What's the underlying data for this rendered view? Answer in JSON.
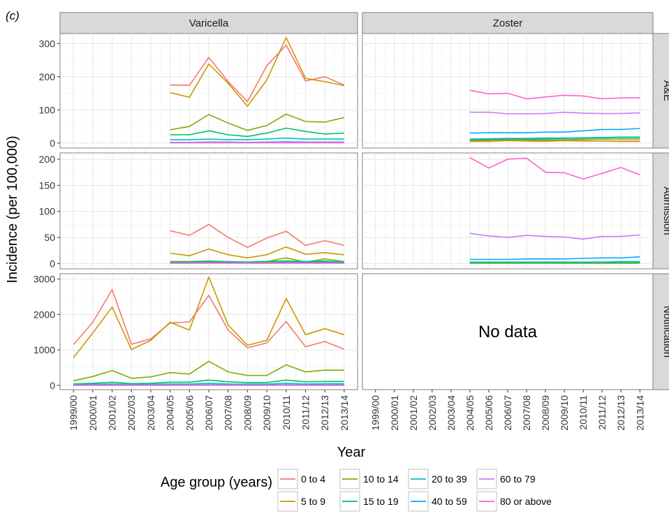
{
  "chart_data": {
    "type": "line",
    "panel_tag": "(c)",
    "columns": [
      "Varicella",
      "Zoster"
    ],
    "rows": [
      "A&E",
      "Admission",
      "Notification"
    ],
    "xlabel": "Year",
    "ylabel": "Incidence (per 100,000)",
    "categories": [
      "1999/00",
      "2000/01",
      "2001/02",
      "2002/03",
      "2003/04",
      "2004/05",
      "2005/06",
      "2006/07",
      "2007/08",
      "2008/09",
      "2009/10",
      "2010/11",
      "2011/12",
      "2012/13",
      "2013/14"
    ],
    "row_axes": [
      {
        "ylim": [
          -15,
          330
        ],
        "ticks": [
          0,
          100,
          200,
          300
        ]
      },
      {
        "ylim": [
          -10,
          212
        ],
        "ticks": [
          0,
          50,
          100,
          150,
          200
        ]
      },
      {
        "ylim": [
          -120,
          3150
        ],
        "ticks": [
          0,
          1000,
          2000,
          3000
        ]
      }
    ],
    "no_data_text": "No data",
    "legend": {
      "title": "Age group (years)",
      "placement": "bottom",
      "entries": [
        "0 to 4",
        "5 to 9",
        "10 to 14",
        "15 to 19",
        "20 to 39",
        "40 to 59",
        "60 to 79",
        "80 or above"
      ],
      "colors": [
        "#F8766D",
        "#CD9600",
        "#7CAE00",
        "#00BE67",
        "#00BFC4",
        "#00A9FF",
        "#C77CFF",
        "#FF61CC"
      ]
    },
    "panels": [
      {
        "row": 0,
        "col": 0,
        "series": [
          {
            "name": "0 to 4",
            "values": [
              null,
              null,
              null,
              null,
              null,
              175,
              174,
              258,
              185,
              125,
              233,
              295,
              187,
              200,
              175
            ]
          },
          {
            "name": "5 to 9",
            "values": [
              null,
              null,
              null,
              null,
              null,
              152,
              138,
              238,
              180,
              111,
              190,
              318,
              195,
              185,
              173
            ]
          },
          {
            "name": "10 to 14",
            "values": [
              null,
              null,
              null,
              null,
              null,
              40,
              50,
              86,
              60,
              38,
              53,
              87,
              65,
              63,
              77
            ]
          },
          {
            "name": "15 to 19",
            "values": [
              null,
              null,
              null,
              null,
              null,
              25,
              25,
              37,
              25,
              20,
              30,
              45,
              35,
              27,
              30
            ]
          },
          {
            "name": "20 to 39",
            "values": [
              null,
              null,
              null,
              null,
              null,
              10,
              10,
              12,
              10,
              10,
              12,
              15,
              12,
              12,
              12
            ]
          },
          {
            "name": "40 to 59",
            "values": [
              null,
              null,
              null,
              null,
              null,
              2,
              2,
              3,
              3,
              2,
              3,
              4,
              3,
              3,
              3
            ]
          },
          {
            "name": "60 to 79",
            "values": [
              null,
              null,
              null,
              null,
              null,
              1,
              1,
              2,
              2,
              1,
              2,
              2,
              2,
              2,
              2
            ]
          },
          {
            "name": "80 or above",
            "values": [
              null,
              null,
              null,
              null,
              null,
              1,
              1,
              1,
              1,
              1,
              1,
              1,
              1,
              1,
              1
            ]
          }
        ]
      },
      {
        "row": 0,
        "col": 1,
        "series": [
          {
            "name": "0 to 4",
            "values": [
              null,
              null,
              null,
              null,
              null,
              5,
              5,
              7,
              6,
              5,
              7,
              8,
              6,
              6,
              6
            ]
          },
          {
            "name": "5 to 9",
            "values": [
              null,
              null,
              null,
              null,
              null,
              5,
              6,
              8,
              7,
              6,
              7,
              6,
              6,
              5,
              5
            ]
          },
          {
            "name": "10 to 14",
            "values": [
              null,
              null,
              null,
              null,
              null,
              8,
              9,
              10,
              10,
              9,
              10,
              12,
              12,
              12,
              12
            ]
          },
          {
            "name": "15 to 19",
            "values": [
              null,
              null,
              null,
              null,
              null,
              10,
              12,
              13,
              13,
              13,
              14,
              16,
              16,
              17,
              17
            ]
          },
          {
            "name": "20 to 39",
            "values": [
              null,
              null,
              null,
              null,
              null,
              12,
              13,
              14,
              14,
              15,
              15,
              16,
              17,
              18,
              18
            ]
          },
          {
            "name": "40 to 59",
            "values": [
              null,
              null,
              null,
              null,
              null,
              30,
              31,
              31,
              31,
              33,
              33,
              37,
              41,
              41,
              44
            ]
          },
          {
            "name": "60 to 79",
            "values": [
              null,
              null,
              null,
              null,
              null,
              93,
              93,
              88,
              88,
              89,
              93,
              90,
              89,
              89,
              91
            ]
          },
          {
            "name": "80 or above",
            "values": [
              null,
              null,
              null,
              null,
              null,
              159,
              148,
              150,
              133,
              139,
              144,
              142,
              133,
              136,
              136
            ]
          }
        ]
      },
      {
        "row": 1,
        "col": 0,
        "series": [
          {
            "name": "0 to 4",
            "values": [
              null,
              null,
              null,
              null,
              null,
              63,
              54,
              75,
              50,
              31,
              49,
              62,
              35,
              44,
              35
            ]
          },
          {
            "name": "5 to 9",
            "values": [
              null,
              null,
              null,
              null,
              null,
              20,
              15,
              28,
              17,
              11,
              17,
              32,
              18,
              21,
              17
            ]
          },
          {
            "name": "10 to 14",
            "values": [
              null,
              null,
              null,
              null,
              null,
              4,
              4,
              5,
              4,
              3,
              4,
              11,
              3,
              9,
              4
            ]
          },
          {
            "name": "15 to 19",
            "values": [
              null,
              null,
              null,
              null,
              null,
              3,
              3,
              4,
              3,
              3,
              4,
              5,
              4,
              5,
              3
            ]
          },
          {
            "name": "20 to 39",
            "values": [
              null,
              null,
              null,
              null,
              null,
              2,
              2,
              3,
              3,
              2,
              2,
              3,
              3,
              3,
              3
            ]
          },
          {
            "name": "40 to 59",
            "values": [
              null,
              null,
              null,
              null,
              null,
              1,
              1,
              2,
              2,
              1,
              1,
              2,
              2,
              2,
              2
            ]
          },
          {
            "name": "60 to 79",
            "values": [
              null,
              null,
              null,
              null,
              null,
              1,
              1,
              1,
              1,
              1,
              1,
              1,
              1,
              1,
              1
            ]
          },
          {
            "name": "80 or above",
            "values": [
              null,
              null,
              null,
              null,
              null,
              1,
              1,
              1,
              1,
              1,
              1,
              1,
              1,
              1,
              1
            ]
          }
        ]
      },
      {
        "row": 1,
        "col": 1,
        "series": [
          {
            "name": "0 to 4",
            "values": [
              null,
              null,
              null,
              null,
              null,
              1,
              1,
              1,
              1,
              1,
              1,
              1,
              1,
              1,
              1
            ]
          },
          {
            "name": "5 to 9",
            "values": [
              null,
              null,
              null,
              null,
              null,
              1,
              1,
              1,
              1,
              1,
              1,
              1,
              1,
              1,
              1
            ]
          },
          {
            "name": "10 to 14",
            "values": [
              null,
              null,
              null,
              null,
              null,
              1,
              1,
              1,
              1,
              1,
              1,
              1,
              1,
              1,
              1
            ]
          },
          {
            "name": "15 to 19",
            "values": [
              null,
              null,
              null,
              null,
              null,
              2,
              2,
              2,
              2,
              2,
              2,
              2,
              2,
              2,
              2
            ]
          },
          {
            "name": "20 to 39",
            "values": [
              null,
              null,
              null,
              null,
              null,
              3,
              3,
              3,
              3,
              3,
              3,
              3,
              3,
              4,
              4
            ]
          },
          {
            "name": "40 to 59",
            "values": [
              null,
              null,
              null,
              null,
              null,
              8,
              8,
              8,
              9,
              9,
              9,
              10,
              11,
              11,
              13
            ]
          },
          {
            "name": "60 to 79",
            "values": [
              null,
              null,
              null,
              null,
              null,
              58,
              53,
              50,
              54,
              52,
              51,
              47,
              52,
              52,
              55
            ]
          },
          {
            "name": "80 or above",
            "values": [
              null,
              null,
              null,
              null,
              null,
              203,
              183,
              200,
              202,
              175,
              174,
              162,
              173,
              184,
              170
            ]
          }
        ]
      },
      {
        "row": 2,
        "col": 0,
        "series": [
          {
            "name": "0 to 4",
            "values": [
              1150,
              1780,
              2700,
              1160,
              1310,
              1760,
              1790,
              2540,
              1560,
              1060,
              1200,
              1800,
              1090,
              1240,
              1020
            ]
          },
          {
            "name": "5 to 9",
            "values": [
              780,
              1480,
              2210,
              1010,
              1270,
              1780,
              1560,
              3060,
              1700,
              1130,
              1270,
              2450,
              1430,
              1600,
              1430
            ]
          },
          {
            "name": "10 to 14",
            "values": [
              130,
              250,
              420,
              200,
              240,
              360,
              320,
              680,
              380,
              280,
              280,
              580,
              380,
              430,
              430
            ]
          },
          {
            "name": "15 to 19",
            "values": [
              40,
              60,
              90,
              50,
              60,
              90,
              90,
              150,
              100,
              80,
              80,
              150,
              100,
              110,
              110
            ]
          },
          {
            "name": "20 to 39",
            "values": [
              20,
              30,
              40,
              25,
              30,
              40,
              40,
              60,
              40,
              35,
              35,
              60,
              40,
              45,
              45
            ]
          },
          {
            "name": "40 to 59",
            "values": [
              10,
              12,
              15,
              10,
              12,
              15,
              15,
              20,
              15,
              12,
              12,
              20,
              15,
              15,
              15
            ]
          },
          {
            "name": "60 to 79",
            "values": [
              5,
              5,
              6,
              5,
              5,
              6,
              6,
              8,
              6,
              5,
              5,
              8,
              6,
              6,
              6
            ]
          },
          {
            "name": "80 or above",
            "values": [
              2,
              2,
              3,
              2,
              2,
              3,
              3,
              4,
              3,
              2,
              2,
              4,
              3,
              3,
              3
            ]
          }
        ]
      }
    ]
  }
}
